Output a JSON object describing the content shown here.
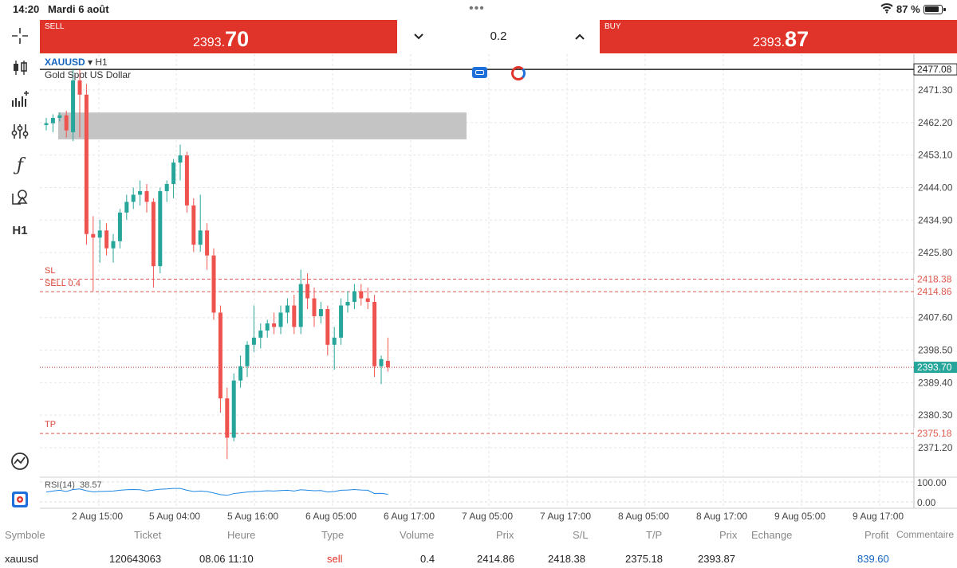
{
  "status_bar": {
    "time": "14:20",
    "date": "Mardi 6 août",
    "battery": "87 %"
  },
  "toolbar": {
    "items": [
      {
        "name": "crosshair-icon"
      },
      {
        "name": "chart-type-icon"
      },
      {
        "name": "indicators-icon"
      },
      {
        "name": "settings-sliders-icon"
      },
      {
        "name": "function-icon"
      },
      {
        "name": "objects-icon"
      },
      {
        "name": "timeframe-button",
        "label": "H1"
      },
      {
        "name": "trade-chart-icon"
      },
      {
        "name": "one-click-icon"
      }
    ]
  },
  "trade": {
    "sell_label": "SELL",
    "sell_price_small": "2393.",
    "sell_price_big": "70",
    "buy_label": "BUY",
    "buy_price_small": "2393.",
    "buy_price_big": "87",
    "volume": "0.2"
  },
  "chart_header": {
    "symbol": "XAUUSD",
    "arrow": "▾",
    "timeframe": "H1",
    "description": "Gold Spot US Dollar"
  },
  "chart_lines": {
    "sl_label": "SL",
    "sell_label": "SELL 0.4",
    "tp_label": "TP"
  },
  "colors": {
    "bull": "#26a69a",
    "bear": "#ef5350",
    "order_line": "#e05a4f",
    "current_price": "#26a69a",
    "sell_button": "#e0332a",
    "rsi": "#1e88e5"
  },
  "chart_data": {
    "type": "candlestick",
    "y_ticks": [
      2471.3,
      2462.2,
      2453.1,
      2444.0,
      2434.9,
      2425.8,
      2407.6,
      2398.5,
      2389.4,
      2380.3,
      2371.2
    ],
    "y_tick_labels": [
      "2471.30",
      "2462.20",
      "2453.10",
      "2444.00",
      "2434.90",
      "2425.80",
      "2407.60",
      "2398.50",
      "2389.40",
      "2380.30",
      "2371.20"
    ],
    "x_ticks": [
      "2 Aug 15:00",
      "5 Aug 04:00",
      "5 Aug 16:00",
      "6 Aug 05:00",
      "6 Aug 17:00",
      "7 Aug 05:00",
      "7 Aug 17:00",
      "8 Aug 05:00",
      "8 Aug 17:00",
      "9 Aug 05:00",
      "9 Aug 17:00"
    ],
    "price_lines": [
      {
        "label": "2477.08",
        "value": 2477.08,
        "style": "solid-black"
      },
      {
        "label": "2418.38",
        "value": 2418.38,
        "style": "sl"
      },
      {
        "label": "2414.86",
        "value": 2414.86,
        "style": "order"
      },
      {
        "label": "2393.70",
        "value": 2393.7,
        "style": "current"
      },
      {
        "label": "2375.18",
        "value": 2375.18,
        "style": "tp"
      }
    ],
    "zone": {
      "from": 2465.0,
      "to": 2457.5
    },
    "candles": [
      {
        "o": 2461.5,
        "h": 2463.5,
        "l": 2460.0,
        "c": 2462.0
      },
      {
        "o": 2462.0,
        "h": 2464.5,
        "l": 2459.5,
        "c": 2463.5
      },
      {
        "o": 2463.5,
        "h": 2465.0,
        "l": 2462.5,
        "c": 2464.2
      },
      {
        "o": 2464.2,
        "h": 2465.5,
        "l": 2458.0,
        "c": 2460.0
      },
      {
        "o": 2459.5,
        "h": 2477.0,
        "l": 2457.0,
        "c": 2474.0
      },
      {
        "o": 2474.0,
        "h": 2477.0,
        "l": 2458.0,
        "c": 2470.0
      },
      {
        "o": 2470.0,
        "h": 2473.0,
        "l": 2428.0,
        "c": 2431.0
      },
      {
        "o": 2431.0,
        "h": 2436.0,
        "l": 2415.0,
        "c": 2430.0
      },
      {
        "o": 2430.0,
        "h": 2435.0,
        "l": 2423.0,
        "c": 2432.0
      },
      {
        "o": 2432.0,
        "h": 2434.0,
        "l": 2425.0,
        "c": 2427.0
      },
      {
        "o": 2427.0,
        "h": 2431.0,
        "l": 2423.0,
        "c": 2429.0
      },
      {
        "o": 2429.0,
        "h": 2438.0,
        "l": 2427.0,
        "c": 2437.0
      },
      {
        "o": 2437.0,
        "h": 2442.0,
        "l": 2435.0,
        "c": 2440.0
      },
      {
        "o": 2440.0,
        "h": 2444.0,
        "l": 2438.0,
        "c": 2442.0
      },
      {
        "o": 2442.0,
        "h": 2446.0,
        "l": 2439.0,
        "c": 2443.0
      },
      {
        "o": 2443.0,
        "h": 2445.0,
        "l": 2437.0,
        "c": 2440.0
      },
      {
        "o": 2440.0,
        "h": 2441.0,
        "l": 2416.0,
        "c": 2422.0
      },
      {
        "o": 2422.0,
        "h": 2444.0,
        "l": 2420.0,
        "c": 2443.0
      },
      {
        "o": 2443.0,
        "h": 2446.0,
        "l": 2440.0,
        "c": 2445.0
      },
      {
        "o": 2445.0,
        "h": 2452.0,
        "l": 2441.0,
        "c": 2451.0
      },
      {
        "o": 2451.0,
        "h": 2456.0,
        "l": 2446.0,
        "c": 2453.0
      },
      {
        "o": 2453.0,
        "h": 2454.0,
        "l": 2437.0,
        "c": 2439.0
      },
      {
        "o": 2439.0,
        "h": 2441.0,
        "l": 2426.0,
        "c": 2428.0
      },
      {
        "o": 2428.0,
        "h": 2442.0,
        "l": 2426.0,
        "c": 2432.0
      },
      {
        "o": 2432.0,
        "h": 2434.0,
        "l": 2421.0,
        "c": 2425.0
      },
      {
        "o": 2425.0,
        "h": 2427.0,
        "l": 2407.0,
        "c": 2409.0
      },
      {
        "o": 2409.0,
        "h": 2411.0,
        "l": 2381.0,
        "c": 2385.0
      },
      {
        "o": 2385.0,
        "h": 2388.0,
        "l": 2368.0,
        "c": 2374.0
      },
      {
        "o": 2374.0,
        "h": 2392.0,
        "l": 2373.0,
        "c": 2390.0
      },
      {
        "o": 2390.0,
        "h": 2397.0,
        "l": 2388.0,
        "c": 2394.0
      },
      {
        "o": 2394.0,
        "h": 2401.0,
        "l": 2391.0,
        "c": 2400.0
      },
      {
        "o": 2400.0,
        "h": 2411.0,
        "l": 2398.0,
        "c": 2402.0
      },
      {
        "o": 2402.0,
        "h": 2406.0,
        "l": 2399.0,
        "c": 2404.0
      },
      {
        "o": 2404.0,
        "h": 2407.0,
        "l": 2402.0,
        "c": 2406.0
      },
      {
        "o": 2406.0,
        "h": 2409.0,
        "l": 2403.0,
        "c": 2405.0
      },
      {
        "o": 2405.0,
        "h": 2411.0,
        "l": 2403.0,
        "c": 2409.0
      },
      {
        "o": 2409.0,
        "h": 2413.0,
        "l": 2406.0,
        "c": 2411.0
      },
      {
        "o": 2411.0,
        "h": 2414.0,
        "l": 2403.0,
        "c": 2405.0
      },
      {
        "o": 2405.0,
        "h": 2421.0,
        "l": 2403.0,
        "c": 2417.0
      },
      {
        "o": 2417.0,
        "h": 2420.0,
        "l": 2410.0,
        "c": 2413.0
      },
      {
        "o": 2413.0,
        "h": 2416.0,
        "l": 2405.0,
        "c": 2408.0
      },
      {
        "o": 2408.0,
        "h": 2412.0,
        "l": 2406.0,
        "c": 2410.0
      },
      {
        "o": 2410.0,
        "h": 2411.0,
        "l": 2397.0,
        "c": 2400.0
      },
      {
        "o": 2400.0,
        "h": 2405.0,
        "l": 2393.0,
        "c": 2402.0
      },
      {
        "o": 2402.0,
        "h": 2413.0,
        "l": 2400.0,
        "c": 2411.0
      },
      {
        "o": 2411.0,
        "h": 2415.0,
        "l": 2409.0,
        "c": 2412.0
      },
      {
        "o": 2412.0,
        "h": 2417.0,
        "l": 2410.0,
        "c": 2415.0
      },
      {
        "o": 2415.0,
        "h": 2417.0,
        "l": 2411.0,
        "c": 2413.0
      },
      {
        "o": 2413.0,
        "h": 2416.0,
        "l": 2410.0,
        "c": 2412.0
      },
      {
        "o": 2412.0,
        "h": 2414.0,
        "l": 2391.0,
        "c": 2394.0
      },
      {
        "o": 2394.0,
        "h": 2397.0,
        "l": 2389.0,
        "c": 2396.0
      },
      {
        "o": 2395.5,
        "h": 2402.0,
        "l": 2392.5,
        "c": 2393.7
      }
    ],
    "rsi": {
      "label": "RSI(14)",
      "value": "38.57",
      "levels": [
        "100.00",
        "0.00"
      ],
      "values": [
        48,
        52,
        55,
        50,
        58,
        60,
        53,
        49,
        50,
        51,
        52,
        55,
        57,
        58,
        57,
        52,
        56,
        59,
        60,
        62,
        62,
        55,
        50,
        52,
        50,
        44,
        38,
        35,
        42,
        45,
        48,
        50,
        51,
        53,
        52,
        54,
        55,
        52,
        57,
        55,
        53,
        54,
        48,
        50,
        55,
        56,
        58,
        56,
        55,
        42,
        43,
        39
      ]
    }
  },
  "table": {
    "headers": {
      "symbol": "Symbole",
      "ticket": "Ticket",
      "time": "Heure",
      "type": "Type",
      "volume": "Volume",
      "price": "Prix",
      "sl": "S/L",
      "tp": "T/P",
      "current_price": "Prix",
      "swap": "Echange",
      "profit": "Profit",
      "comment": "Commentaire"
    },
    "row": {
      "symbol": "xauusd",
      "ticket": "120643063",
      "time": "08.06 11:10",
      "type": "sell",
      "volume": "0.4",
      "price": "2414.86",
      "sl": "2418.38",
      "tp": "2375.18",
      "current_price": "2393.87",
      "swap": "",
      "profit": "839.60",
      "comment": ""
    }
  }
}
